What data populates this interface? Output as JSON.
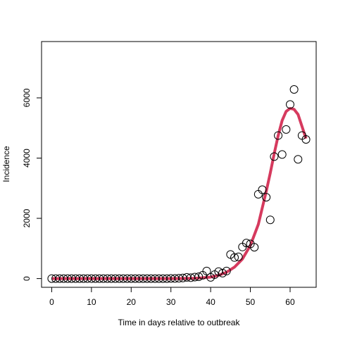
{
  "chart_data": {
    "type": "scatter",
    "title": "",
    "xlabel": "Time in days relative to outbreak",
    "ylabel": "Incidence",
    "xlim": [
      -2.56,
      66.56
    ],
    "ylim": [
      -290,
      7870
    ],
    "xticks": [
      0,
      10,
      20,
      30,
      40,
      50,
      60
    ],
    "yticks": [
      0,
      2000,
      4000,
      6000
    ],
    "grid": false,
    "legend": "none",
    "series": [
      {
        "kind": "points",
        "marker": "open-circle",
        "color": "#000000",
        "x": [
          0,
          1,
          2,
          3,
          4,
          5,
          6,
          7,
          8,
          9,
          10,
          11,
          12,
          13,
          14,
          15,
          16,
          17,
          18,
          19,
          20,
          21,
          22,
          23,
          24,
          25,
          26,
          27,
          28,
          29,
          30,
          31,
          32,
          33,
          34,
          35,
          36,
          37,
          38,
          39,
          40,
          41,
          42,
          43,
          44,
          45,
          46,
          47,
          48,
          49,
          50,
          51,
          52,
          53,
          54,
          55,
          56,
          57,
          58,
          59,
          60,
          61,
          62,
          63,
          64
        ],
        "y": [
          0,
          0,
          0,
          0,
          0,
          0,
          0,
          0,
          0,
          0,
          0,
          0,
          0,
          0,
          0,
          0,
          0,
          0,
          0,
          0,
          0,
          0,
          0,
          0,
          0,
          0,
          0,
          0,
          0,
          0,
          5,
          5,
          10,
          20,
          40,
          30,
          50,
          60,
          110,
          250,
          40,
          130,
          230,
          180,
          250,
          800,
          700,
          720,
          1050,
          1180,
          1150,
          1040,
          2800,
          2950,
          2700,
          1950,
          4050,
          4750,
          4120,
          4950,
          5780,
          6280,
          3960,
          4750,
          4620
        ]
      },
      {
        "kind": "line",
        "color": "#d63a5e",
        "x": [
          0,
          5,
          10,
          15,
          20,
          25,
          28,
          30,
          32,
          34,
          36,
          38,
          40,
          42,
          44,
          46,
          48,
          50,
          52,
          54,
          55,
          56,
          57,
          58,
          59,
          60,
          61,
          62,
          63,
          64
        ],
        "y": [
          0,
          0,
          0,
          0,
          0,
          0,
          0,
          0,
          2,
          5,
          10,
          25,
          50,
          110,
          210,
          380,
          650,
          1100,
          1800,
          2900,
          3500,
          4150,
          4750,
          5250,
          5550,
          5650,
          5620,
          5450,
          5050,
          4650
        ]
      }
    ]
  }
}
